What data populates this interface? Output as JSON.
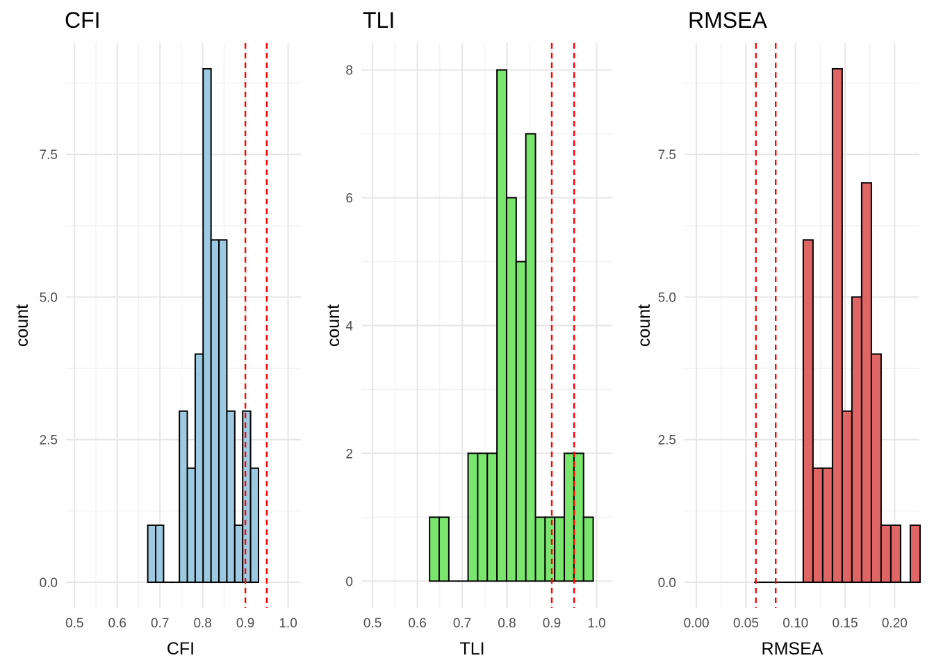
{
  "chart_data": [
    {
      "type": "histogram",
      "title": "CFI",
      "xlabel": "CFI",
      "ylabel": "count",
      "xlim": [
        0.48,
        1.03
      ],
      "ylim": [
        -0.45,
        9.45
      ],
      "x_ticks": [
        0.5,
        0.6,
        0.7,
        0.8,
        0.9,
        1.0
      ],
      "x_tick_labels": [
        "0.5",
        "0.6",
        "0.7",
        "0.8",
        "0.9",
        "1.0"
      ],
      "y_ticks": [
        0,
        2.5,
        5,
        7.5
      ],
      "y_tick_labels": [
        "0.0",
        "2.5",
        "5.0",
        "7.5"
      ],
      "bin_start": 0.6714,
      "bin_width": 0.01852,
      "counts": [
        1,
        1,
        0,
        0,
        3,
        2,
        4,
        9,
        6,
        6,
        3,
        1,
        3,
        2
      ],
      "fill": "#9ecae1",
      "reference_lines": [
        0.9,
        0.95
      ],
      "reference_color": "#ff0000"
    },
    {
      "type": "histogram",
      "title": "TLI",
      "xlabel": "TLI",
      "ylabel": "count",
      "xlim": [
        0.475,
        1.035
      ],
      "ylim": [
        -0.42,
        8.42
      ],
      "x_ticks": [
        0.5,
        0.6,
        0.7,
        0.8,
        0.9,
        1.0
      ],
      "x_tick_labels": [
        "0.5",
        "0.6",
        "0.7",
        "0.8",
        "0.9",
        "1.0"
      ],
      "y_ticks": [
        0,
        2,
        4,
        6,
        8
      ],
      "y_tick_labels": [
        "0",
        "2",
        "4",
        "6",
        "8"
      ],
      "bin_start": 0.6273,
      "bin_width": 0.02148,
      "counts": [
        1,
        1,
        0,
        0,
        2,
        2,
        2,
        8,
        6,
        5,
        7,
        1,
        1,
        1,
        2,
        2,
        1
      ],
      "fill": "#7ae66e",
      "reference_lines": [
        0.9,
        0.95
      ],
      "reference_color": "#ff0000"
    },
    {
      "type": "histogram",
      "title": "RMSEA",
      "xlabel": "RMSEA",
      "ylabel": "count",
      "xlim": [
        -0.012,
        0.225
      ],
      "ylim": [
        -0.45,
        9.45
      ],
      "x_ticks": [
        0.0,
        0.05,
        0.1,
        0.15,
        0.2
      ],
      "x_tick_labels": [
        "0.00",
        "0.05",
        "0.10",
        "0.15",
        "0.20"
      ],
      "y_ticks": [
        0,
        2.5,
        5,
        7.5
      ],
      "y_tick_labels": [
        "0.0",
        "2.5",
        "5.0",
        "7.5"
      ],
      "bin_start": 0.0587,
      "bin_width": 0.00982,
      "counts": [
        0,
        0,
        0,
        0,
        0,
        6,
        2,
        2,
        9,
        3,
        5,
        7,
        4,
        1,
        1,
        0,
        1
      ],
      "fill": "#e06666",
      "reference_lines": [
        0.06,
        0.08
      ],
      "reference_color": "#ff0000"
    }
  ]
}
